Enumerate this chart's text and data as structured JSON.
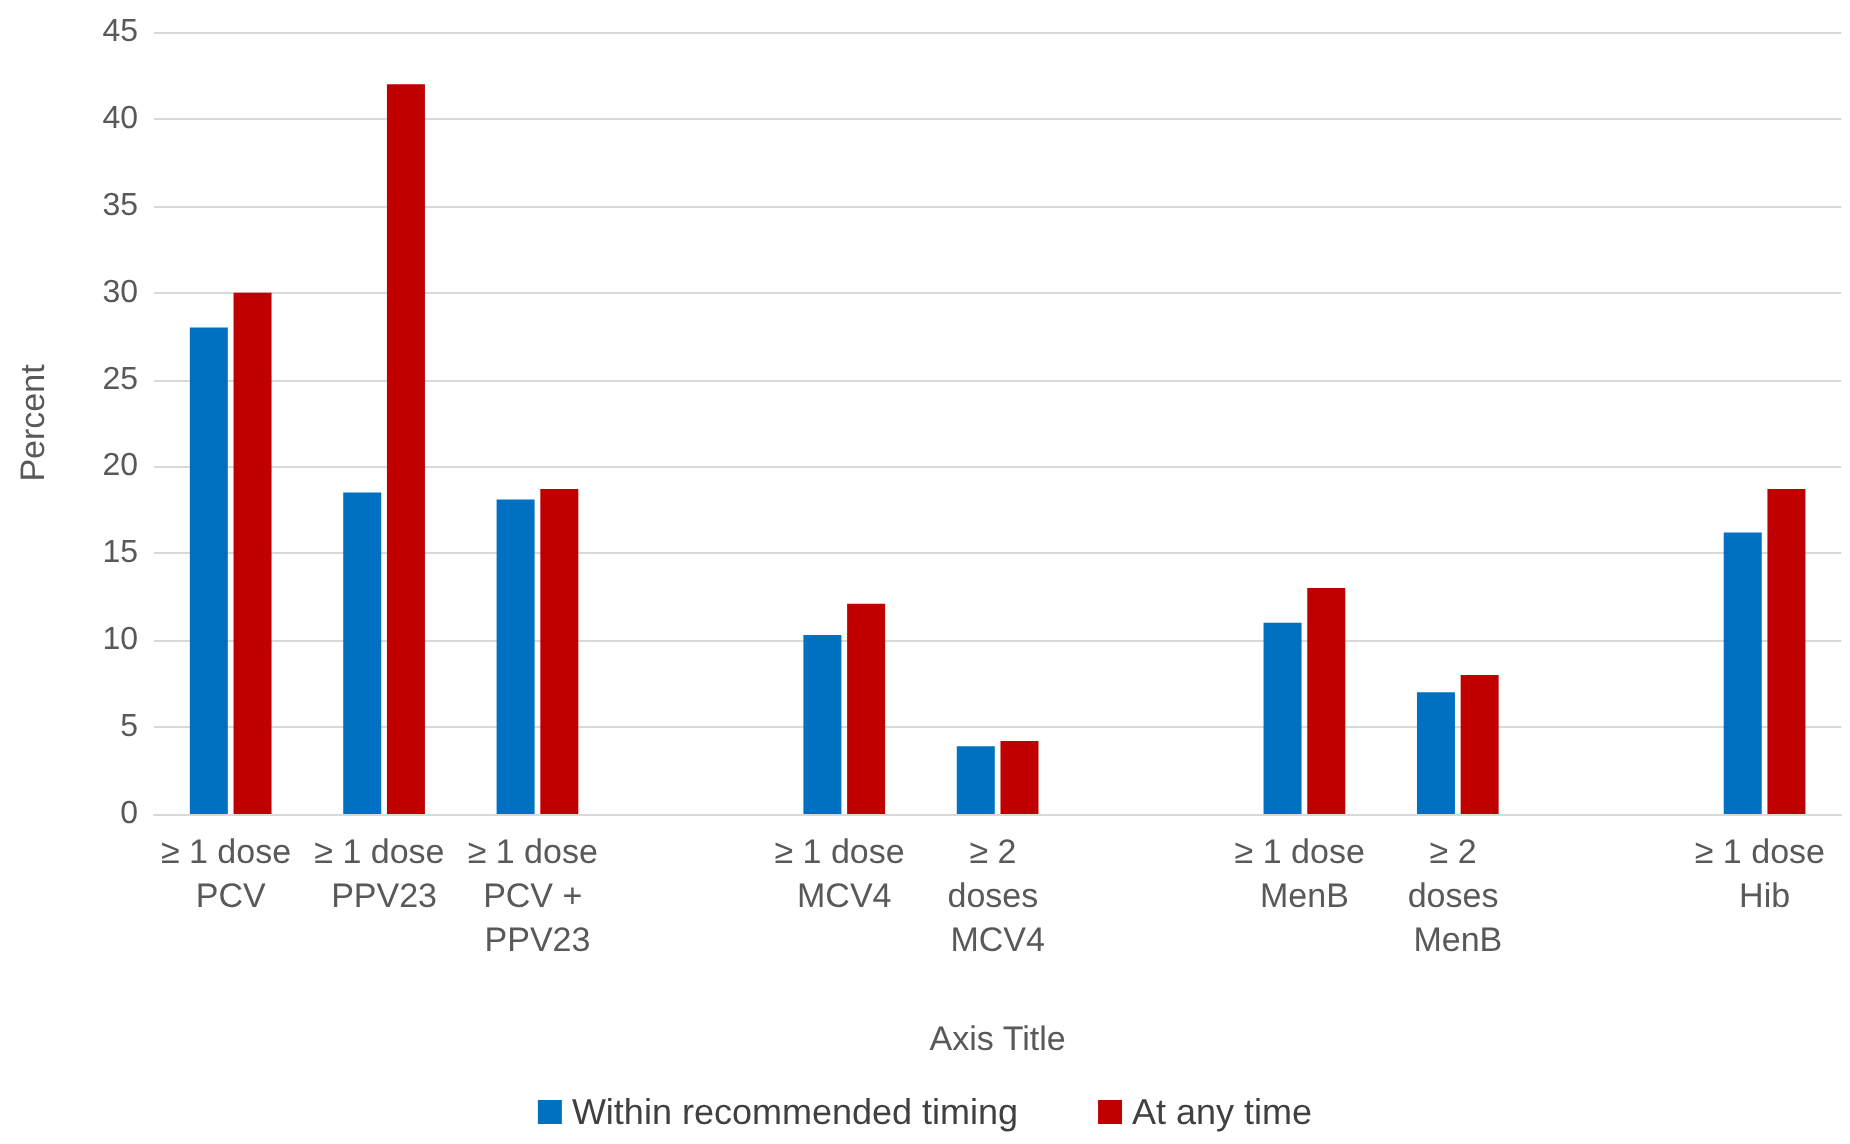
{
  "chart_data": {
    "type": "bar",
    "xlabel": "Axis Title",
    "ylabel": "Percent",
    "categories": [
      "≥ 1 dose PCV",
      "≥ 1 dose PPV23",
      "≥ 1 dose PCV + PPV23",
      null,
      "≥ 1 dose MCV4",
      "≥ 2 doses MCV4",
      null,
      "≥ 1 dose MenB",
      "≥ 2 doses MenB",
      null,
      "≥ 1 dose Hib"
    ],
    "series": [
      {
        "name": "Within recommended timing",
        "color": "#0070c0",
        "values": [
          28,
          18.5,
          18.1,
          null,
          10.3,
          3.9,
          null,
          11,
          7,
          null,
          16.2
        ]
      },
      {
        "name": "At any time",
        "color": "#c00000",
        "values": [
          30,
          42,
          18.7,
          null,
          12.1,
          4.2,
          null,
          13,
          8,
          null,
          18.7
        ]
      }
    ],
    "ylim": [
      0,
      45
    ],
    "yticks": [
      0,
      5,
      10,
      15,
      20,
      25,
      30,
      35,
      40,
      45
    ],
    "grid": "y",
    "legend": "bottom"
  }
}
